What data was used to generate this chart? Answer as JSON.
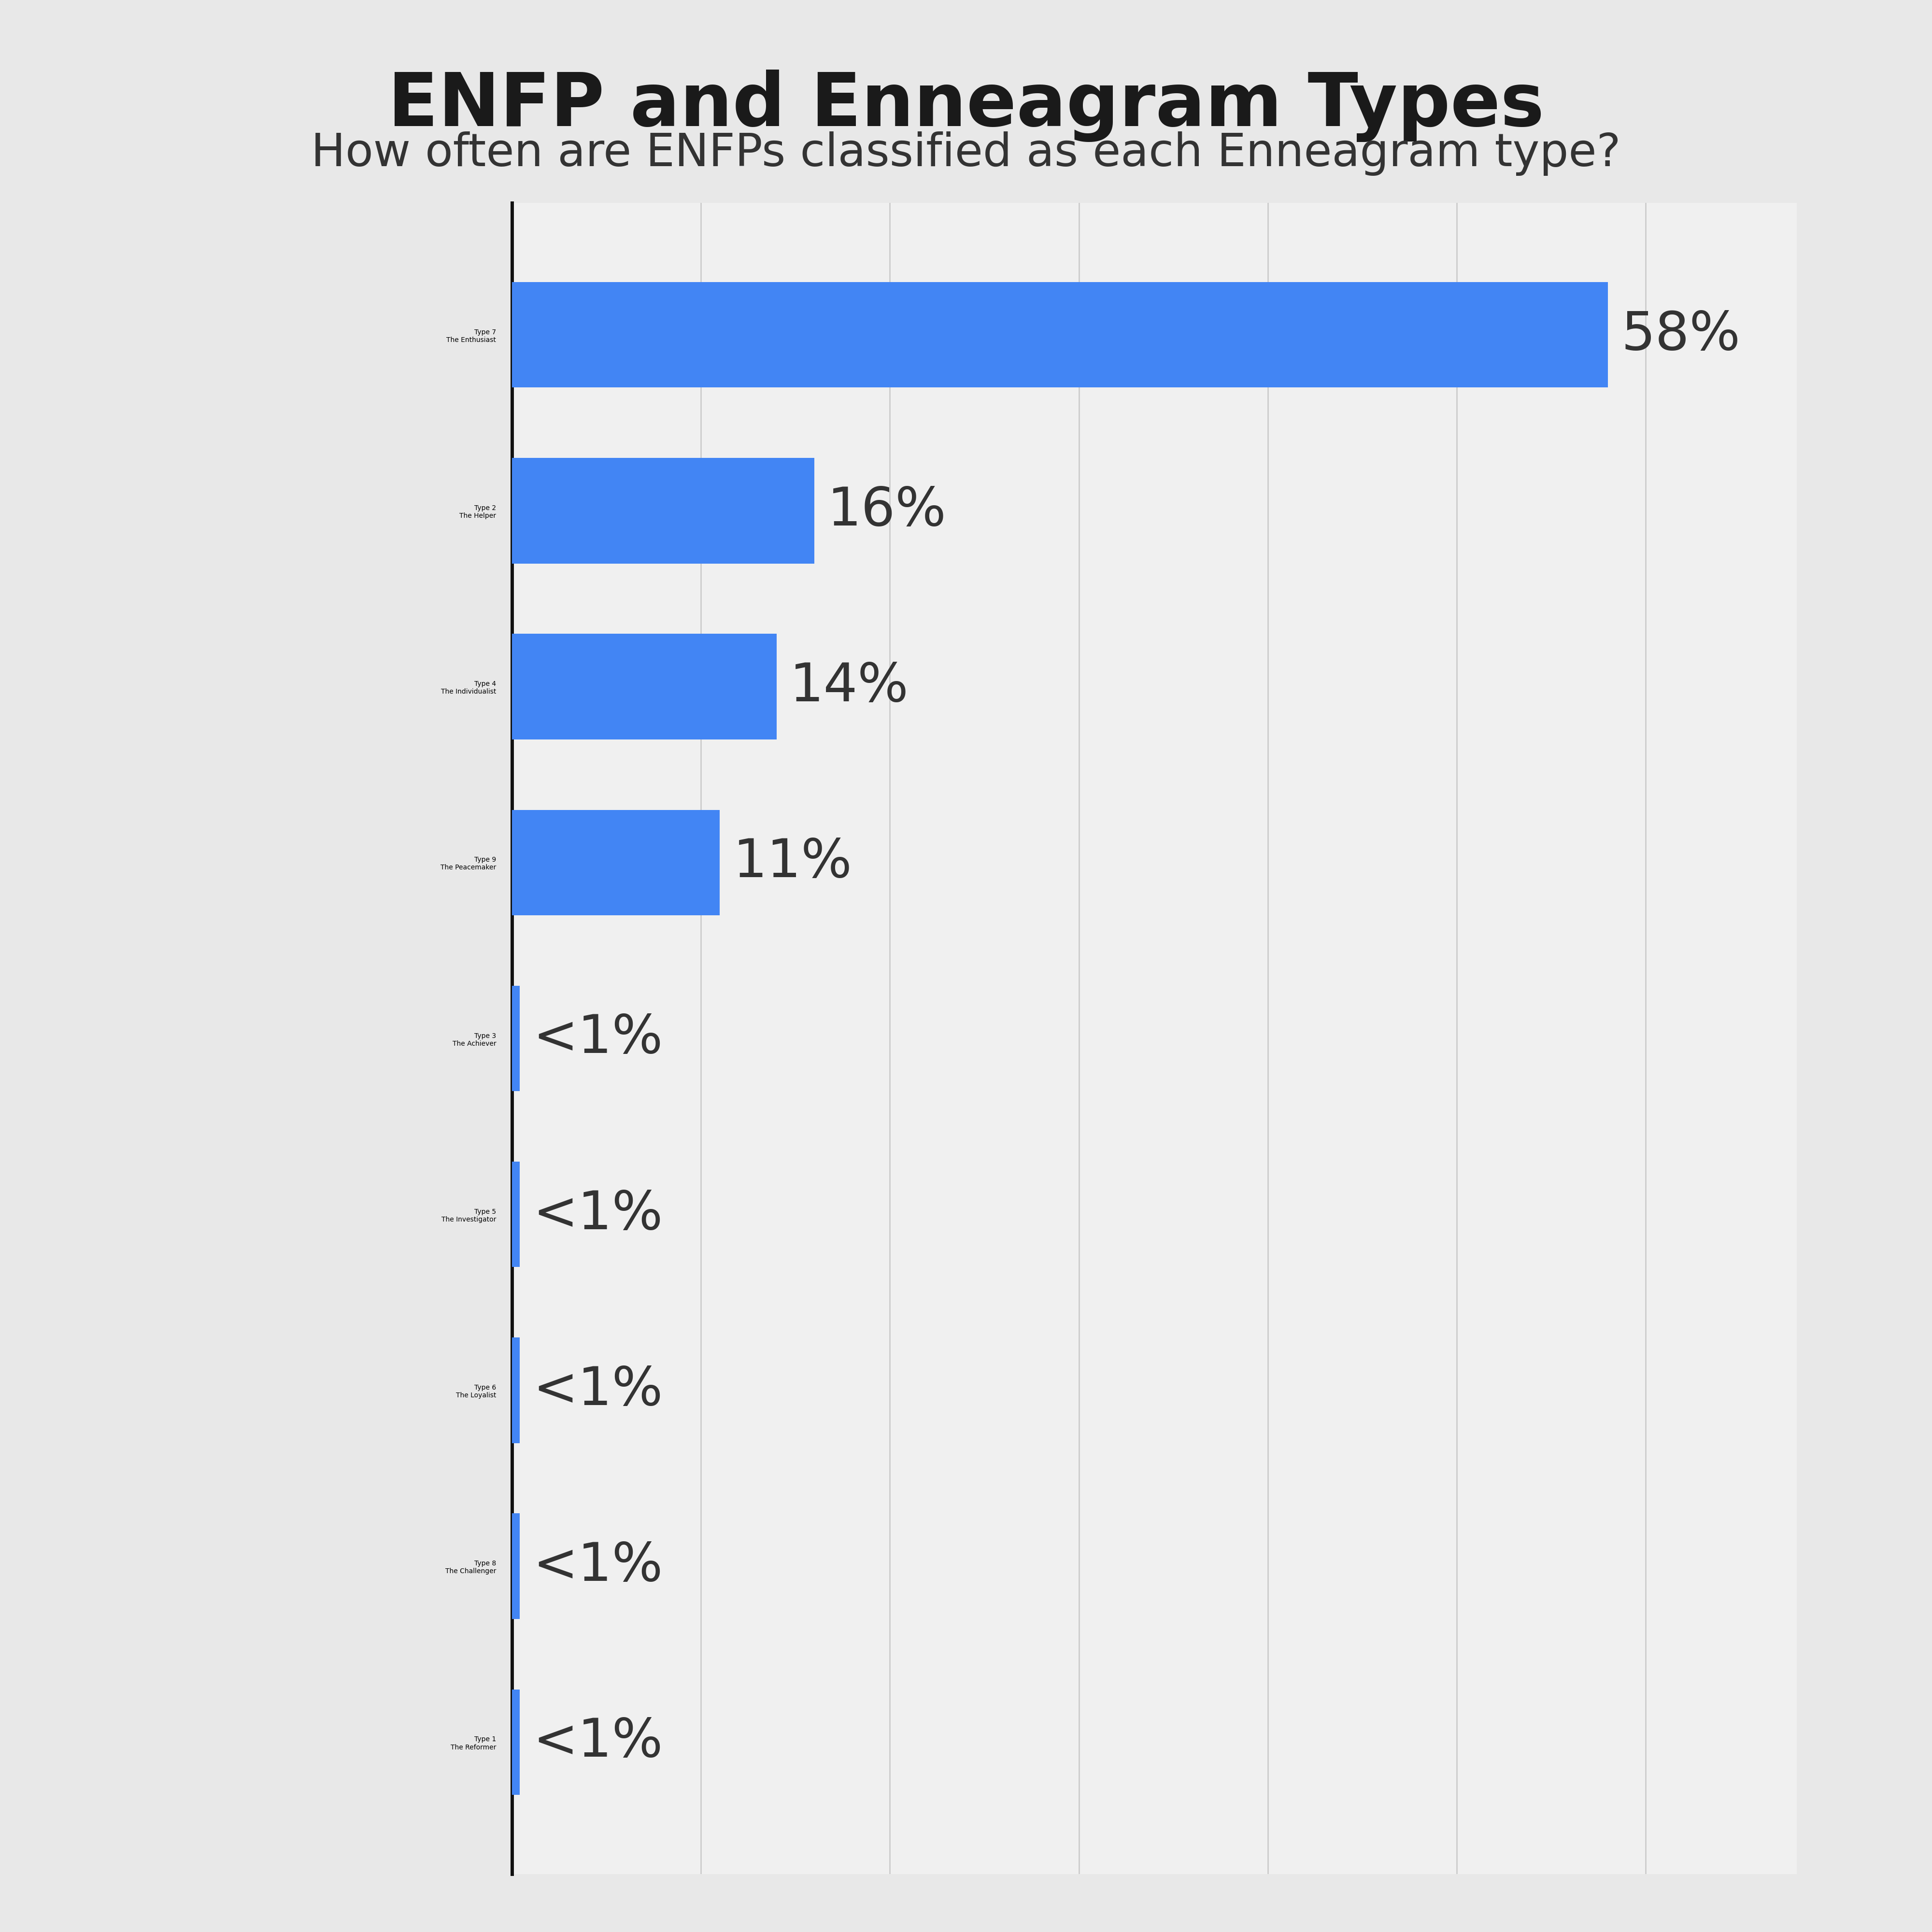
{
  "title": "ENFP and Enneagram Types",
  "subtitle": "How often are ENFPs classified as each Enneagram type?",
  "categories": [
    "Type 7\nThe Enthusiast",
    "Type 2\nThe Helper",
    "Type 4\nThe Individualist",
    "Type 9\nThe Peacemaker",
    "Type 3\nThe Achiever",
    "Type 5\nThe Investigator",
    "Type 6\nThe Loyalist",
    "Type 8\nThe Challenger",
    "Type 1\nThe Reformer"
  ],
  "values": [
    58,
    16,
    14,
    11,
    0.4,
    0.4,
    0.4,
    0.4,
    0.4
  ],
  "labels": [
    "58%",
    "16%",
    "14%",
    "11%",
    "<1%",
    "<1%",
    "<1%",
    "<1%",
    "<1%"
  ],
  "bar_color": "#4285F4",
  "background_color": "#E8E8E8",
  "plot_bg_color": "#F0F0F0",
  "title_fontsize": 110,
  "subtitle_fontsize": 68,
  "label_fontsize": 80,
  "tick_fontsize": 72,
  "title_color": "#1a1a1a",
  "subtitle_color": "#333333",
  "label_color": "#333333",
  "tick_color": "#555555",
  "xlim": [
    0,
    68
  ],
  "grid_color": "#cccccc",
  "spine_color": "#111111",
  "spine_linewidth": 5
}
